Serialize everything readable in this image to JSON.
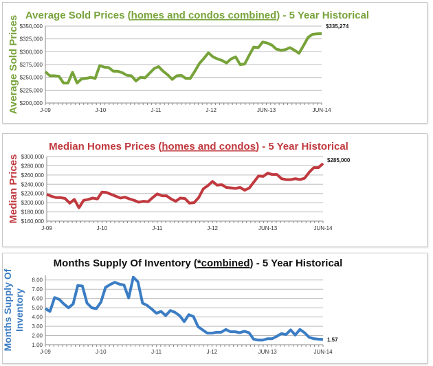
{
  "chart_data": [
    {
      "type": "line",
      "title_parts": [
        "Average Sold Prices (",
        "homes and condos combined",
        ") - 5 Year Historical"
      ],
      "ylabel": "Average Sold Prices",
      "color": "#77a33a",
      "ylim": [
        200000,
        350000
      ],
      "yticks": [
        200000,
        225000,
        250000,
        275000,
        300000,
        325000,
        350000
      ],
      "ytick_labels": [
        "$200,000",
        "$225,000",
        "$250,000",
        "$275,000",
        "$300,000",
        "$325,000",
        "$350,000"
      ],
      "xtick_labels": [
        "J-09",
        "J-10",
        "J-11",
        "J-12",
        "JUN-13",
        "JUN-14"
      ],
      "grid": true,
      "end_label": "$335,274",
      "values": [
        261000,
        253000,
        253000,
        252000,
        239000,
        239000,
        260000,
        239000,
        247000,
        248000,
        250000,
        248000,
        273000,
        270000,
        269000,
        262000,
        262000,
        259000,
        254000,
        253000,
        243000,
        250000,
        249000,
        258000,
        267000,
        271000,
        262000,
        255000,
        246000,
        253000,
        254000,
        248000,
        248000,
        262000,
        277000,
        287000,
        298000,
        290000,
        286000,
        283000,
        278000,
        286000,
        290000,
        275000,
        276000,
        293000,
        309000,
        308000,
        319000,
        317000,
        313000,
        305000,
        303000,
        304000,
        308000,
        303000,
        297000,
        312000,
        328000,
        334000,
        335000,
        335274
      ]
    },
    {
      "type": "line",
      "title_parts": [
        "Median Homes Prices (",
        "homes and condos",
        ") - 5 Year Historical"
      ],
      "ylabel": "Median Prices",
      "color": "#c0393e",
      "ylim": [
        160000,
        300000
      ],
      "yticks": [
        160000,
        180000,
        200000,
        220000,
        240000,
        260000,
        280000,
        300000
      ],
      "ytick_labels": [
        "$160,000",
        "$180,000",
        "$200,000",
        "$220,000",
        "$240,000",
        "$260,000",
        "$280,000",
        "$300,000"
      ],
      "xtick_labels": [
        "J-09",
        "J-10",
        "J-11",
        "J-12",
        "JUN-13",
        "JUN-14"
      ],
      "grid": true,
      "end_label": "$285,000",
      "values": [
        218000,
        214000,
        211000,
        211000,
        209000,
        199000,
        207000,
        189000,
        205000,
        207000,
        210000,
        208000,
        223000,
        222000,
        218000,
        214000,
        210000,
        212000,
        208000,
        205000,
        201000,
        203000,
        202000,
        211000,
        219000,
        215000,
        215000,
        208000,
        203000,
        210000,
        209000,
        199000,
        200000,
        211000,
        230000,
        237000,
        246000,
        238000,
        239000,
        233000,
        232000,
        231000,
        233000,
        227000,
        232000,
        245000,
        258000,
        257000,
        264000,
        261000,
        261000,
        252000,
        250000,
        250000,
        252000,
        250000,
        253000,
        266000,
        276000,
        276000,
        285000
      ]
    },
    {
      "type": "line",
      "title_parts": [
        "Months Supply Of Inventory (",
        "*combined",
        ") - 5 Year Historical"
      ],
      "ylabel": "Months Supply Of Inventory",
      "color": "#3b7dc4",
      "ylim": [
        1,
        8.5
      ],
      "yticks": [
        1,
        2,
        3,
        4,
        5,
        6,
        7,
        8
      ],
      "ytick_labels": [
        "1.00",
        "2.00",
        "3.00",
        "4.00",
        "5.00",
        "6.00",
        "7.00",
        "8.00"
      ],
      "xtick_labels": [
        "J-09",
        "J-10",
        "J-11",
        "J-12",
        "JUN-13",
        "JUN-14"
      ],
      "grid": true,
      "end_label": "1.57",
      "values": [
        4.9,
        4.6,
        6.1,
        5.9,
        5.4,
        5.0,
        5.4,
        7.4,
        7.35,
        5.5,
        5.0,
        4.9,
        5.6,
        7.2,
        7.5,
        7.75,
        7.55,
        7.45,
        6.05,
        8.3,
        7.8,
        5.5,
        5.25,
        4.85,
        4.4,
        4.6,
        4.15,
        4.7,
        4.5,
        4.15,
        3.5,
        4.25,
        4.05,
        2.95,
        2.6,
        2.25,
        2.25,
        2.35,
        2.35,
        2.65,
        2.4,
        2.4,
        2.3,
        2.45,
        2.3,
        1.6,
        1.5,
        1.5,
        1.65,
        1.65,
        1.9,
        2.2,
        2.1,
        2.6,
        2.05,
        2.65,
        2.3,
        1.8,
        1.65,
        1.6,
        1.57
      ]
    }
  ]
}
